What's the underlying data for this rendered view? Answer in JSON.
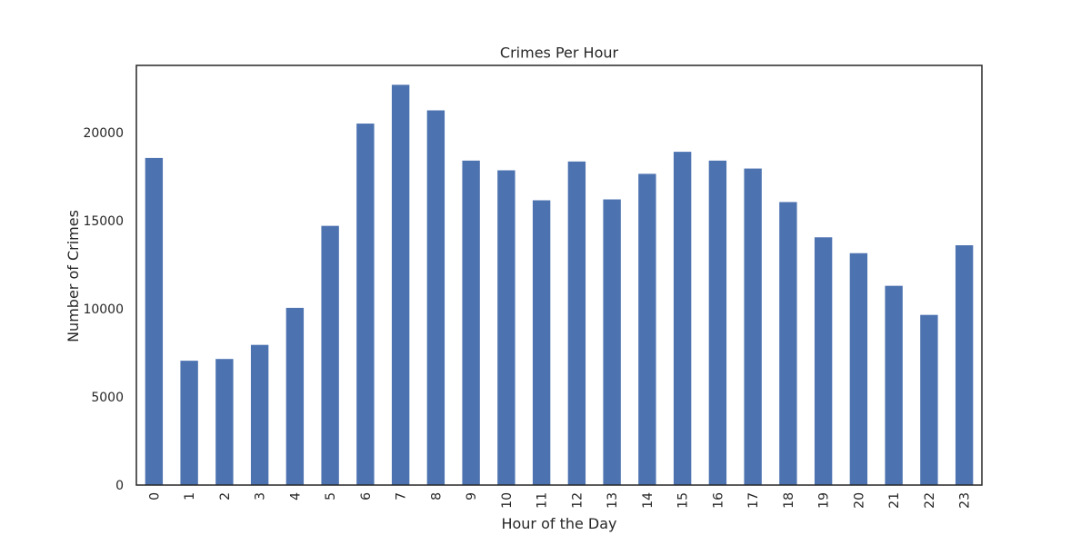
{
  "chart_data": {
    "type": "bar",
    "title": "Crimes Per Hour",
    "xlabel": "Hour of the Day",
    "ylabel": "Number of Crimes",
    "categories": [
      "0",
      "1",
      "2",
      "3",
      "4",
      "5",
      "6",
      "7",
      "8",
      "9",
      "10",
      "11",
      "12",
      "13",
      "14",
      "15",
      "16",
      "17",
      "18",
      "19",
      "20",
      "21",
      "22",
      "23"
    ],
    "values": [
      18550,
      7050,
      7150,
      7950,
      10050,
      14700,
      20500,
      22700,
      21250,
      18400,
      17850,
      16150,
      18350,
      16200,
      17650,
      18900,
      18400,
      17950,
      16050,
      14050,
      13150,
      11300,
      9650,
      13600
    ],
    "ylim": [
      0,
      23800
    ],
    "yticks": [
      0,
      5000,
      10000,
      15000,
      20000
    ],
    "grid": false,
    "legend": "none",
    "bar_color": "#4c72b0",
    "axis_color": "#262626"
  }
}
